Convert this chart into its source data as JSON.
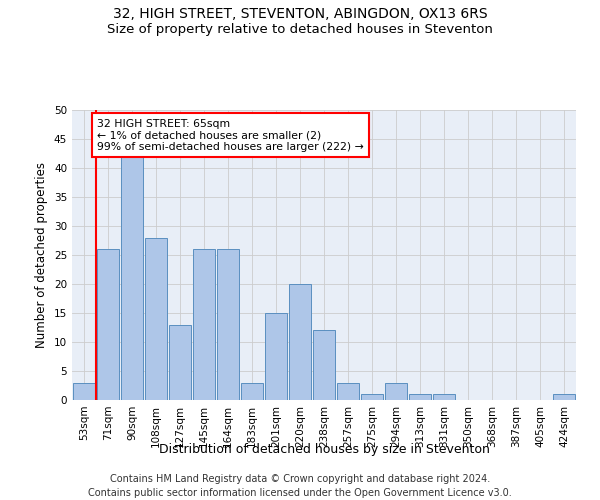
{
  "title": "32, HIGH STREET, STEVENTON, ABINGDON, OX13 6RS",
  "subtitle": "Size of property relative to detached houses in Steventon",
  "xlabel": "Distribution of detached houses by size in Steventon",
  "ylabel": "Number of detached properties",
  "bar_labels": [
    "53sqm",
    "71sqm",
    "90sqm",
    "108sqm",
    "127sqm",
    "145sqm",
    "164sqm",
    "183sqm",
    "201sqm",
    "220sqm",
    "238sqm",
    "257sqm",
    "275sqm",
    "294sqm",
    "313sqm",
    "331sqm",
    "350sqm",
    "368sqm",
    "387sqm",
    "405sqm",
    "424sqm"
  ],
  "bar_values": [
    3,
    26,
    42,
    28,
    13,
    26,
    26,
    3,
    15,
    20,
    12,
    3,
    1,
    3,
    1,
    1,
    0,
    0,
    0,
    0,
    1
  ],
  "bar_color": "#aec6e8",
  "bar_edge_color": "#5a8fc0",
  "annotation_box_text": "32 HIGH STREET: 65sqm\n← 1% of detached houses are smaller (2)\n99% of semi-detached houses are larger (222) →",
  "annotation_box_edge_color": "red",
  "red_line_x": 0.5,
  "ylim": [
    0,
    50
  ],
  "yticks": [
    0,
    5,
    10,
    15,
    20,
    25,
    30,
    35,
    40,
    45,
    50
  ],
  "grid_color": "#cccccc",
  "background_color": "#e8eef7",
  "footer_line1": "Contains HM Land Registry data © Crown copyright and database right 2024.",
  "footer_line2": "Contains public sector information licensed under the Open Government Licence v3.0.",
  "title_fontsize": 10,
  "subtitle_fontsize": 9.5,
  "xlabel_fontsize": 9,
  "ylabel_fontsize": 8.5,
  "tick_fontsize": 7.5,
  "footer_fontsize": 7
}
